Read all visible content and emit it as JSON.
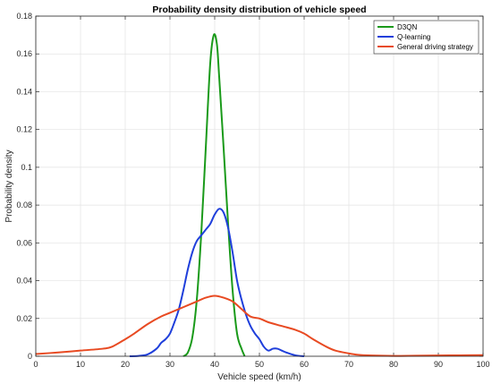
{
  "chart_data": {
    "type": "line",
    "title": "Probability density distribution of vehicle speed",
    "xlabel": "Vehicle speed (km/h)",
    "ylabel": "Probability density",
    "xlim": [
      0,
      100
    ],
    "ylim": [
      0,
      0.18
    ],
    "xticks": [
      0,
      10,
      20,
      30,
      40,
      50,
      60,
      70,
      80,
      90,
      100
    ],
    "yticks": [
      0,
      0.02,
      0.04,
      0.06,
      0.08,
      0.1,
      0.12,
      0.14,
      0.16,
      0.18
    ],
    "xtick_labels": [
      "0",
      "10",
      "20",
      "30",
      "40",
      "50",
      "60",
      "70",
      "80",
      "90",
      "100"
    ],
    "ytick_labels": [
      "0",
      "0.02",
      "0.04",
      "0.06",
      "0.08",
      "0.1",
      "0.12",
      "0.14",
      "0.16",
      "0.18"
    ],
    "grid": true,
    "legend_position": "top-right",
    "series": [
      {
        "name": "D3QN",
        "color": "#1a9a1a",
        "points": [
          [
            33,
            0
          ],
          [
            34,
            0.002
          ],
          [
            35,
            0.01
          ],
          [
            36,
            0.03
          ],
          [
            37,
            0.065
          ],
          [
            38,
            0.11
          ],
          [
            39,
            0.155
          ],
          [
            39.8,
            0.17
          ],
          [
            40.5,
            0.165
          ],
          [
            41,
            0.148
          ],
          [
            42,
            0.11
          ],
          [
            43,
            0.07
          ],
          [
            44,
            0.035
          ],
          [
            45,
            0.012
          ],
          [
            46,
            0.004
          ],
          [
            46.7,
            0
          ]
        ]
      },
      {
        "name": "Q-learning",
        "color": "#1f3fdb",
        "points": [
          [
            21,
            0
          ],
          [
            23,
            0.0002
          ],
          [
            25,
            0.001
          ],
          [
            27,
            0.004
          ],
          [
            28,
            0.007
          ],
          [
            29,
            0.009
          ],
          [
            30,
            0.012
          ],
          [
            31,
            0.018
          ],
          [
            32,
            0.025
          ],
          [
            33,
            0.035
          ],
          [
            34,
            0.046
          ],
          [
            35,
            0.055
          ],
          [
            36,
            0.061
          ],
          [
            37,
            0.064
          ],
          [
            38,
            0.067
          ],
          [
            39,
            0.07
          ],
          [
            40,
            0.075
          ],
          [
            41,
            0.078
          ],
          [
            42,
            0.076
          ],
          [
            43,
            0.068
          ],
          [
            44,
            0.055
          ],
          [
            45,
            0.04
          ],
          [
            46,
            0.03
          ],
          [
            47,
            0.022
          ],
          [
            48,
            0.016
          ],
          [
            49,
            0.012
          ],
          [
            50,
            0.009
          ],
          [
            51,
            0.005
          ],
          [
            52,
            0.003
          ],
          [
            53,
            0.004
          ],
          [
            54,
            0.004
          ],
          [
            55,
            0.003
          ],
          [
            56,
            0.002
          ],
          [
            58,
            0.0005
          ],
          [
            60,
            0
          ]
        ]
      },
      {
        "name": "General driving strategy",
        "color": "#e84a22",
        "points": [
          [
            0,
            0.0012
          ],
          [
            5,
            0.002
          ],
          [
            10,
            0.003
          ],
          [
            15,
            0.004
          ],
          [
            17,
            0.005
          ],
          [
            20,
            0.009
          ],
          [
            22,
            0.012
          ],
          [
            25,
            0.017
          ],
          [
            28,
            0.021
          ],
          [
            30,
            0.023
          ],
          [
            33,
            0.026
          ],
          [
            36,
            0.029
          ],
          [
            38,
            0.031
          ],
          [
            40,
            0.032
          ],
          [
            42,
            0.031
          ],
          [
            44,
            0.029
          ],
          [
            46,
            0.025
          ],
          [
            48,
            0.021
          ],
          [
            50,
            0.02
          ],
          [
            52,
            0.018
          ],
          [
            55,
            0.016
          ],
          [
            58,
            0.014
          ],
          [
            60,
            0.012
          ],
          [
            62,
            0.009
          ],
          [
            65,
            0.005
          ],
          [
            67,
            0.003
          ],
          [
            70,
            0.0015
          ],
          [
            72,
            0.0008
          ],
          [
            75,
            0.0004
          ],
          [
            80,
            0.0002
          ],
          [
            85,
            0.0003
          ],
          [
            90,
            0.0004
          ],
          [
            95,
            0.0005
          ],
          [
            100,
            0.0006
          ]
        ]
      }
    ]
  }
}
